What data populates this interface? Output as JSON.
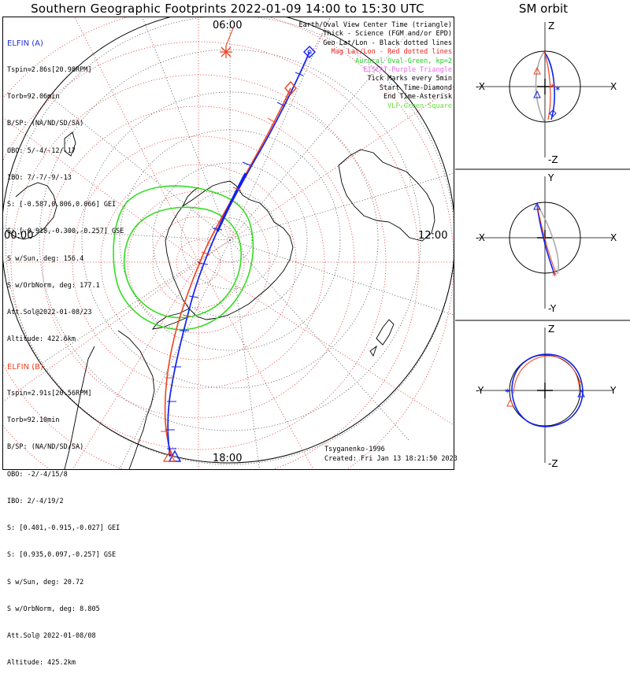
{
  "title": "Southern Geographic Footprints 2022-01-09 14:00 to 15:30 UTC",
  "orbit_title": "SM orbit",
  "mlt_labels": {
    "top": "06:00",
    "left": "00:00",
    "right": "12:00",
    "bottom": "18:00"
  },
  "elfin_a": {
    "name": "ELFIN (A)",
    "color": "#2233dd",
    "lines": [
      "Tspin=2.86s[20.98RPM]",
      "Torb=92.06min",
      "B/SP: (NA/ND/SD/SA)",
      "OBO: 5/-4/-12/-17",
      "IBO: 7/-7/-9/-13",
      "S: [-0.587,0.806,0.066] GEI",
      "S: [-0.918,-0.300,-0.257] GSE",
      "S w/Sun, deg: 156.4",
      "S w/OrbNorm, deg: 177.1",
      "Att.Sol@2022-01-08/23",
      "Altitude: 422.6km"
    ]
  },
  "elfin_b": {
    "name": "ELFIN (B)",
    "color": "#ee4422",
    "lines": [
      "Tspin=2.91s[20.56RPM]",
      "Torb=92.10min",
      "B/SP: (NA/ND/SD/SA)",
      "OBO: -2/-4/15/8",
      "IBO: 2/-4/19/2",
      "S: [0.401,-0.915,-0.027] GEI",
      "S: [0.935,0.097,-0.257] GSE",
      "S w/Sun, deg: 20.72",
      "S w/OrbNorm, deg: 8.805",
      "Att.Sol@ 2022-01-08/08",
      "Altitude: 425.2km"
    ]
  },
  "legend": [
    {
      "text": "Earth/Oval View Center Time (triangle)",
      "color": "#000000"
    },
    {
      "text": "Thick - Science (FGM and/or EPD)",
      "color": "#000000"
    },
    {
      "text": "Geo Lat/Lon - Black dotted lines",
      "color": "#000000"
    },
    {
      "text": "Mag Lat/Lon - Red dotted lines",
      "color": "#ee2222"
    },
    {
      "text": "Auroral Oval-Green, kp=2",
      "color": "#22cc22"
    },
    {
      "text": "EISCAT-Purple Triangle",
      "color": "#ee66ee"
    },
    {
      "text": "Tick Marks every 5min",
      "color": "#000000"
    },
    {
      "text": "Start Time-Diamond",
      "color": "#000000"
    },
    {
      "text": "End Time-Asterisk",
      "color": "#000000"
    },
    {
      "text": "VLF-Green Square",
      "color": "#66dd44"
    }
  ],
  "credits": {
    "model": "Tsyganenko-1996",
    "created": "Created: Fri Jan 13 18:21:50 2023"
  },
  "orbit_panels": [
    {
      "top": "Z",
      "bottom": "-Z",
      "left": "-X",
      "right": "X"
    },
    {
      "top": "Y",
      "bottom": "-Y",
      "left": "-X",
      "right": "X"
    },
    {
      "top": "Z",
      "bottom": "-Z",
      "left": "-Y",
      "right": "Y"
    }
  ],
  "colors": {
    "track_a": "#1122ee",
    "track_b": "#ee4422",
    "oval": "#33dd22",
    "mag_grid": "#dd2222",
    "geo_grid": "#555555",
    "orbit_gray": "#aaaaaa"
  }
}
